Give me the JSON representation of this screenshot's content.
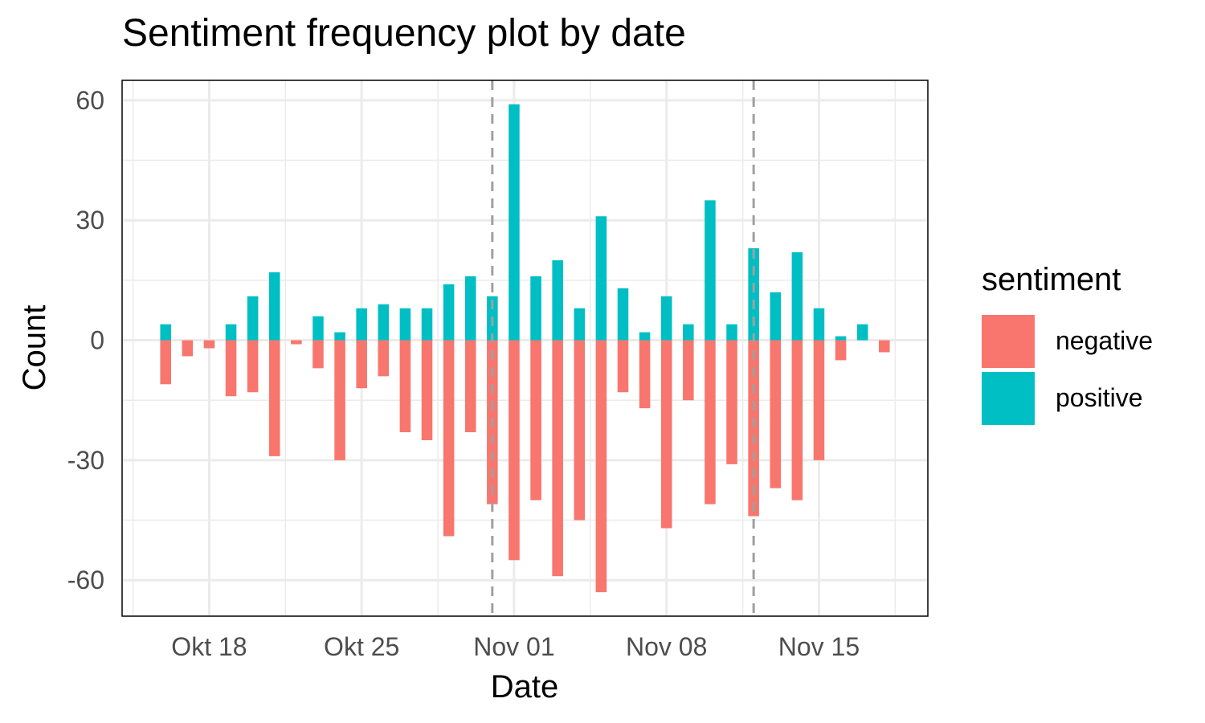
{
  "chart_data": {
    "type": "bar",
    "title": "Sentiment frequency plot by date",
    "xlabel": "Date",
    "ylabel": "Count",
    "x_tick_labels": [
      {
        "label": "Okt 18",
        "date": "2020-10-18"
      },
      {
        "label": "Okt 25",
        "date": "2020-10-25"
      },
      {
        "label": "Nov 01",
        "date": "2020-11-01"
      },
      {
        "label": "Nov 08",
        "date": "2020-11-08"
      },
      {
        "label": "Nov 15",
        "date": "2020-11-15"
      }
    ],
    "xlim": [
      "2020-10-14",
      "2020-11-20"
    ],
    "y_ticks": [
      60,
      30,
      0,
      -30,
      -60
    ],
    "ylim": [
      -69,
      65
    ],
    "grid": true,
    "legend": {
      "title": "sentiment",
      "position": "right",
      "entries": [
        "negative",
        "positive"
      ]
    },
    "colors": {
      "negative": "#F8766D",
      "positive": "#00BFC4",
      "grid": "#EBEBEB",
      "vline": "#A0A0A0"
    },
    "vlines": [
      {
        "date": "2020-10-31",
        "style": "dashed"
      },
      {
        "date": "2020-11-12",
        "style": "dashed"
      }
    ],
    "dates": [
      "2020-10-16",
      "2020-10-17",
      "2020-10-18",
      "2020-10-19",
      "2020-10-20",
      "2020-10-21",
      "2020-10-22",
      "2020-10-23",
      "2020-10-24",
      "2020-10-25",
      "2020-10-26",
      "2020-10-27",
      "2020-10-28",
      "2020-10-29",
      "2020-10-30",
      "2020-10-31",
      "2020-11-01",
      "2020-11-02",
      "2020-11-03",
      "2020-11-04",
      "2020-11-05",
      "2020-11-06",
      "2020-11-07",
      "2020-11-08",
      "2020-11-09",
      "2020-11-10",
      "2020-11-11",
      "2020-11-12",
      "2020-11-13",
      "2020-11-14",
      "2020-11-15",
      "2020-11-16",
      "2020-11-17",
      "2020-11-18"
    ],
    "series": [
      {
        "name": "negative",
        "values": [
          -11,
          -4,
          -2,
          -14,
          -13,
          -29,
          -1,
          -7,
          -30,
          -12,
          -9,
          -23,
          -25,
          -49,
          -23,
          -41,
          -55,
          -40,
          -59,
          -45,
          -63,
          -13,
          -17,
          -47,
          -15,
          -41,
          -31,
          -44,
          -37,
          -40,
          -30,
          -5,
          0,
          -3
        ]
      },
      {
        "name": "positive",
        "values": [
          4,
          0,
          0,
          4,
          11,
          17,
          0,
          6,
          2,
          8,
          9,
          8,
          8,
          14,
          16,
          11,
          59,
          16,
          20,
          8,
          31,
          13,
          2,
          11,
          4,
          35,
          4,
          23,
          12,
          22,
          8,
          1,
          4,
          0
        ]
      }
    ]
  }
}
